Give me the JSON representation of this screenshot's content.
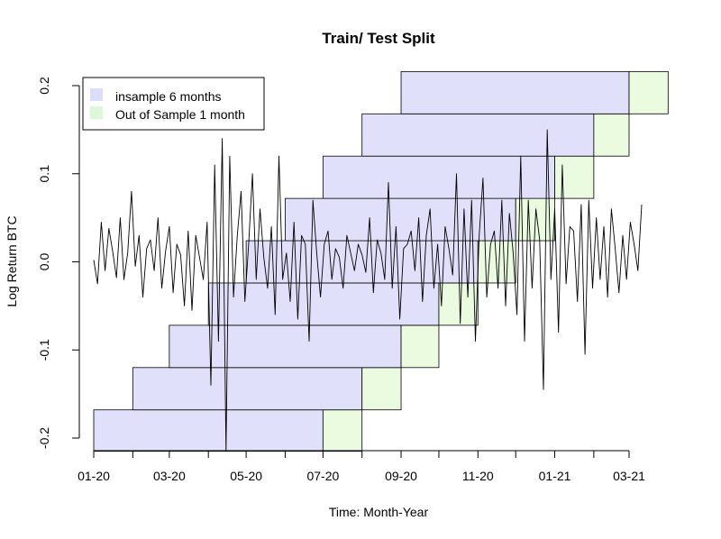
{
  "chart_data": {
    "type": "line",
    "title": "Train/ Test Split",
    "xlabel": "Time:  Month-Year",
    "ylabel": "Log Return BTC",
    "x_tick_labels": [
      "01-20",
      "03-20",
      "05-20",
      "07-20",
      "09-20",
      "11-20",
      "01-21",
      "03-21"
    ],
    "y_ticks": [
      -0.2,
      -0.1,
      0.0,
      0.1,
      0.2
    ],
    "y_tick_labels": [
      "-0.2",
      "-0.1",
      "0.0",
      "0.1",
      "0.2"
    ],
    "xlim": [
      "2020-01-01",
      "2021-03-31"
    ],
    "ylim": [
      -0.215,
      0.2
    ],
    "grid": false,
    "legend": {
      "position": "top-left",
      "items": [
        {
          "label": "insample 6 months",
          "color": "#dcdcfb"
        },
        {
          "label": "Out of Sample 1 month",
          "color": "#dcf8d8"
        }
      ]
    },
    "colors": {
      "insample": "#e0e0fb",
      "outsample": "#eafbe0",
      "series": "#000000"
    },
    "windows": [
      {
        "insample": [
          "2020-01-01",
          "2020-07-01"
        ],
        "outsample": [
          "2020-07-01",
          "2020-08-01"
        ],
        "band": [
          -0.215,
          -0.168
        ]
      },
      {
        "insample": [
          "2020-02-01",
          "2020-08-01"
        ],
        "outsample": [
          "2020-08-01",
          "2020-09-01"
        ],
        "band": [
          -0.168,
          -0.12
        ]
      },
      {
        "insample": [
          "2020-03-01",
          "2020-09-01"
        ],
        "outsample": [
          "2020-09-01",
          "2020-10-01"
        ],
        "band": [
          -0.12,
          -0.072
        ]
      },
      {
        "insample": [
          "2020-04-01",
          "2020-10-01"
        ],
        "outsample": [
          "2020-10-01",
          "2020-11-01"
        ],
        "band": [
          -0.072,
          -0.024
        ]
      },
      {
        "insample": [
          "2020-05-01",
          "2020-11-01"
        ],
        "outsample": [
          "2020-11-01",
          "2020-12-01"
        ],
        "band": [
          -0.024,
          0.024
        ]
      },
      {
        "insample": [
          "2020-06-01",
          "2020-12-01"
        ],
        "outsample": [
          "2020-12-01",
          "2021-01-01"
        ],
        "band": [
          0.024,
          0.072
        ]
      },
      {
        "insample": [
          "2020-07-01",
          "2021-01-01"
        ],
        "outsample": [
          "2021-01-01",
          "2021-02-01"
        ],
        "band": [
          0.072,
          0.12
        ]
      },
      {
        "insample": [
          "2020-08-01",
          "2021-02-01"
        ],
        "outsample": [
          "2021-02-01",
          "2021-03-01"
        ],
        "band": [
          0.12,
          0.168
        ]
      },
      {
        "insample": [
          "2020-09-01",
          "2021-03-01"
        ],
        "outsample": [
          "2021-03-01",
          "2021-04-01"
        ],
        "band": [
          0.168,
          0.216
        ]
      }
    ],
    "series": [
      {
        "start_date": "2020-01-01",
        "step_days": 3,
        "values": [
          0.002,
          -0.025,
          0.045,
          -0.01,
          0.038,
          0.012,
          -0.018,
          0.05,
          -0.02,
          0.01,
          0.08,
          -0.005,
          0.03,
          -0.04,
          0.015,
          0.025,
          -0.01,
          0.05,
          -0.03,
          0.012,
          0.04,
          -0.035,
          0.02,
          0.008,
          -0.05,
          0.035,
          -0.055,
          0.03,
          0.005,
          -0.02,
          0.045,
          -0.14,
          0.11,
          -0.09,
          0.14,
          -0.215,
          0.12,
          -0.04,
          0.03,
          0.08,
          -0.045,
          0.02,
          0.1,
          -0.02,
          0.06,
          0.005,
          -0.03,
          0.04,
          -0.06,
          0.12,
          -0.02,
          0.01,
          -0.045,
          0.045,
          -0.065,
          0.03,
          0.02,
          -0.09,
          0.07,
          0.01,
          -0.04,
          0.02,
          0.035,
          -0.02,
          0.015,
          0.005,
          -0.03,
          0.03,
          0.01,
          -0.01,
          0.02,
          0.008,
          -0.012,
          0.05,
          -0.035,
          0.025,
          0.01,
          -0.02,
          0.09,
          -0.03,
          0.04,
          -0.065,
          0.015,
          0.02,
          0.035,
          -0.01,
          0.05,
          -0.045,
          0.03,
          0.06,
          -0.03,
          0.02,
          -0.05,
          0.04,
          0.015,
          -0.015,
          0.1,
          -0.07,
          0.06,
          -0.04,
          0.07,
          -0.09,
          0.03,
          0.095,
          -0.04,
          0.02,
          0.035,
          -0.03,
          0.07,
          -0.05,
          0.055,
          0.01,
          -0.06,
          0.12,
          -0.09,
          0.07,
          -0.03,
          0.06,
          0.025,
          -0.145,
          0.15,
          -0.02,
          0.06,
          -0.08,
          0.11,
          -0.025,
          0.04,
          0.035,
          -0.045,
          0.065,
          -0.105,
          0.07,
          -0.03,
          0.05,
          -0.02,
          0.04,
          -0.04,
          0.06,
          0.015,
          -0.035,
          0.03,
          -0.02,
          0.045,
          0.02,
          -0.01,
          0.065
        ]
      }
    ]
  }
}
